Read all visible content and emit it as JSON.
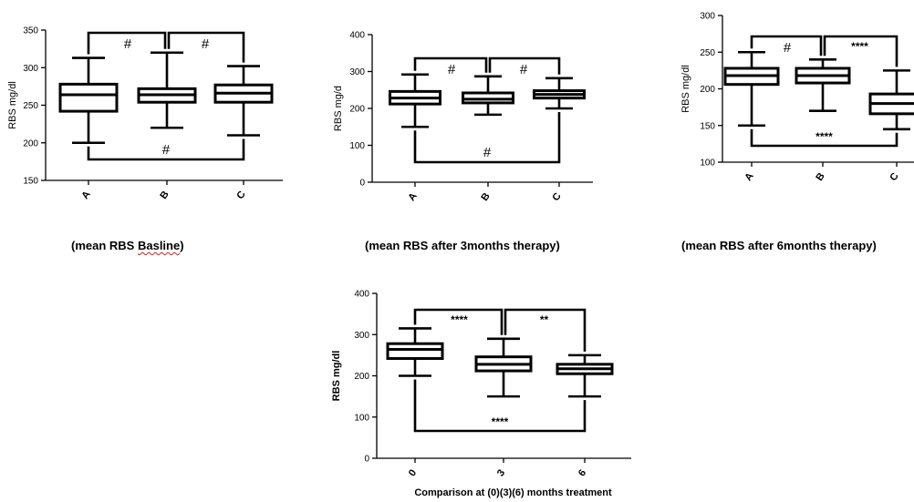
{
  "chart_data": [
    {
      "type": "boxplot",
      "ylabel": "RBS mg/dl",
      "ylim": [
        150,
        350
      ],
      "yticks": [
        150,
        200,
        250,
        300,
        350
      ],
      "categories": [
        "A",
        "B",
        "C"
      ],
      "boxes": [
        {
          "min": 200,
          "q1": 242,
          "median": 264,
          "q3": 278,
          "max": 313
        },
        {
          "min": 220,
          "q1": 254,
          "median": 264,
          "q3": 272,
          "max": 320
        },
        {
          "min": 210,
          "q1": 254,
          "median": 266,
          "q3": 277,
          "max": 302
        }
      ],
      "comparisons": [
        {
          "from": 0,
          "to": 1,
          "label": "#",
          "position": "top"
        },
        {
          "from": 1,
          "to": 2,
          "label": "#",
          "position": "top"
        },
        {
          "from": 0,
          "to": 2,
          "label": "#",
          "position": "bottom"
        }
      ],
      "caption_pre": "(mean RBS ",
      "caption_word": "Basline",
      "caption_post": ")"
    },
    {
      "type": "boxplot",
      "ylabel": "RBS mg/d",
      "ylim": [
        0,
        400
      ],
      "yticks": [
        0,
        100,
        200,
        300,
        400
      ],
      "categories": [
        "A",
        "B",
        "C"
      ],
      "boxes": [
        {
          "min": 150,
          "q1": 212,
          "median": 228,
          "q3": 246,
          "max": 292
        },
        {
          "min": 183,
          "q1": 215,
          "median": 225,
          "q3": 242,
          "max": 287
        },
        {
          "min": 200,
          "q1": 228,
          "median": 238,
          "q3": 248,
          "max": 282
        }
      ],
      "comparisons": [
        {
          "from": 0,
          "to": 1,
          "label": "#",
          "position": "top"
        },
        {
          "from": 1,
          "to": 2,
          "label": "#",
          "position": "top"
        },
        {
          "from": 0,
          "to": 2,
          "label": "#",
          "position": "bottom"
        }
      ],
      "caption": "(mean RBS after 3months therapy)"
    },
    {
      "type": "boxplot",
      "ylabel": "RBS mg/dl",
      "ylim": [
        100,
        300
      ],
      "yticks": [
        100,
        150,
        200,
        250,
        300
      ],
      "categories": [
        "A",
        "B",
        "C"
      ],
      "boxes": [
        {
          "min": 150,
          "q1": 206,
          "median": 218,
          "q3": 228,
          "max": 250
        },
        {
          "min": 170,
          "q1": 208,
          "median": 218,
          "q3": 228,
          "max": 240
        },
        {
          "min": 145,
          "q1": 166,
          "median": 180,
          "q3": 193,
          "max": 225
        }
      ],
      "comparisons": [
        {
          "from": 0,
          "to": 1,
          "label": "#",
          "position": "top"
        },
        {
          "from": 1,
          "to": 2,
          "label": "****",
          "position": "top"
        },
        {
          "from": 0,
          "to": 2,
          "label": "****",
          "position": "bottom"
        }
      ],
      "caption": "(mean RBS after 6months therapy)"
    },
    {
      "type": "boxplot",
      "ylabel": "RBS mg/dl",
      "xlabel": "Comparison at (0)(3)(6) months treatment",
      "ylim": [
        0,
        400
      ],
      "yticks": [
        0,
        100,
        200,
        300,
        400
      ],
      "categories": [
        "0",
        "3",
        "6"
      ],
      "boxes": [
        {
          "min": 200,
          "q1": 242,
          "median": 264,
          "q3": 278,
          "max": 315
        },
        {
          "min": 150,
          "q1": 212,
          "median": 228,
          "q3": 246,
          "max": 290
        },
        {
          "min": 150,
          "q1": 205,
          "median": 217,
          "q3": 228,
          "max": 250
        }
      ],
      "comparisons": [
        {
          "from": 0,
          "to": 1,
          "label": "****",
          "position": "top"
        },
        {
          "from": 1,
          "to": 2,
          "label": "**",
          "position": "top"
        },
        {
          "from": 0,
          "to": 2,
          "label": "****",
          "position": "bottom"
        }
      ]
    }
  ]
}
